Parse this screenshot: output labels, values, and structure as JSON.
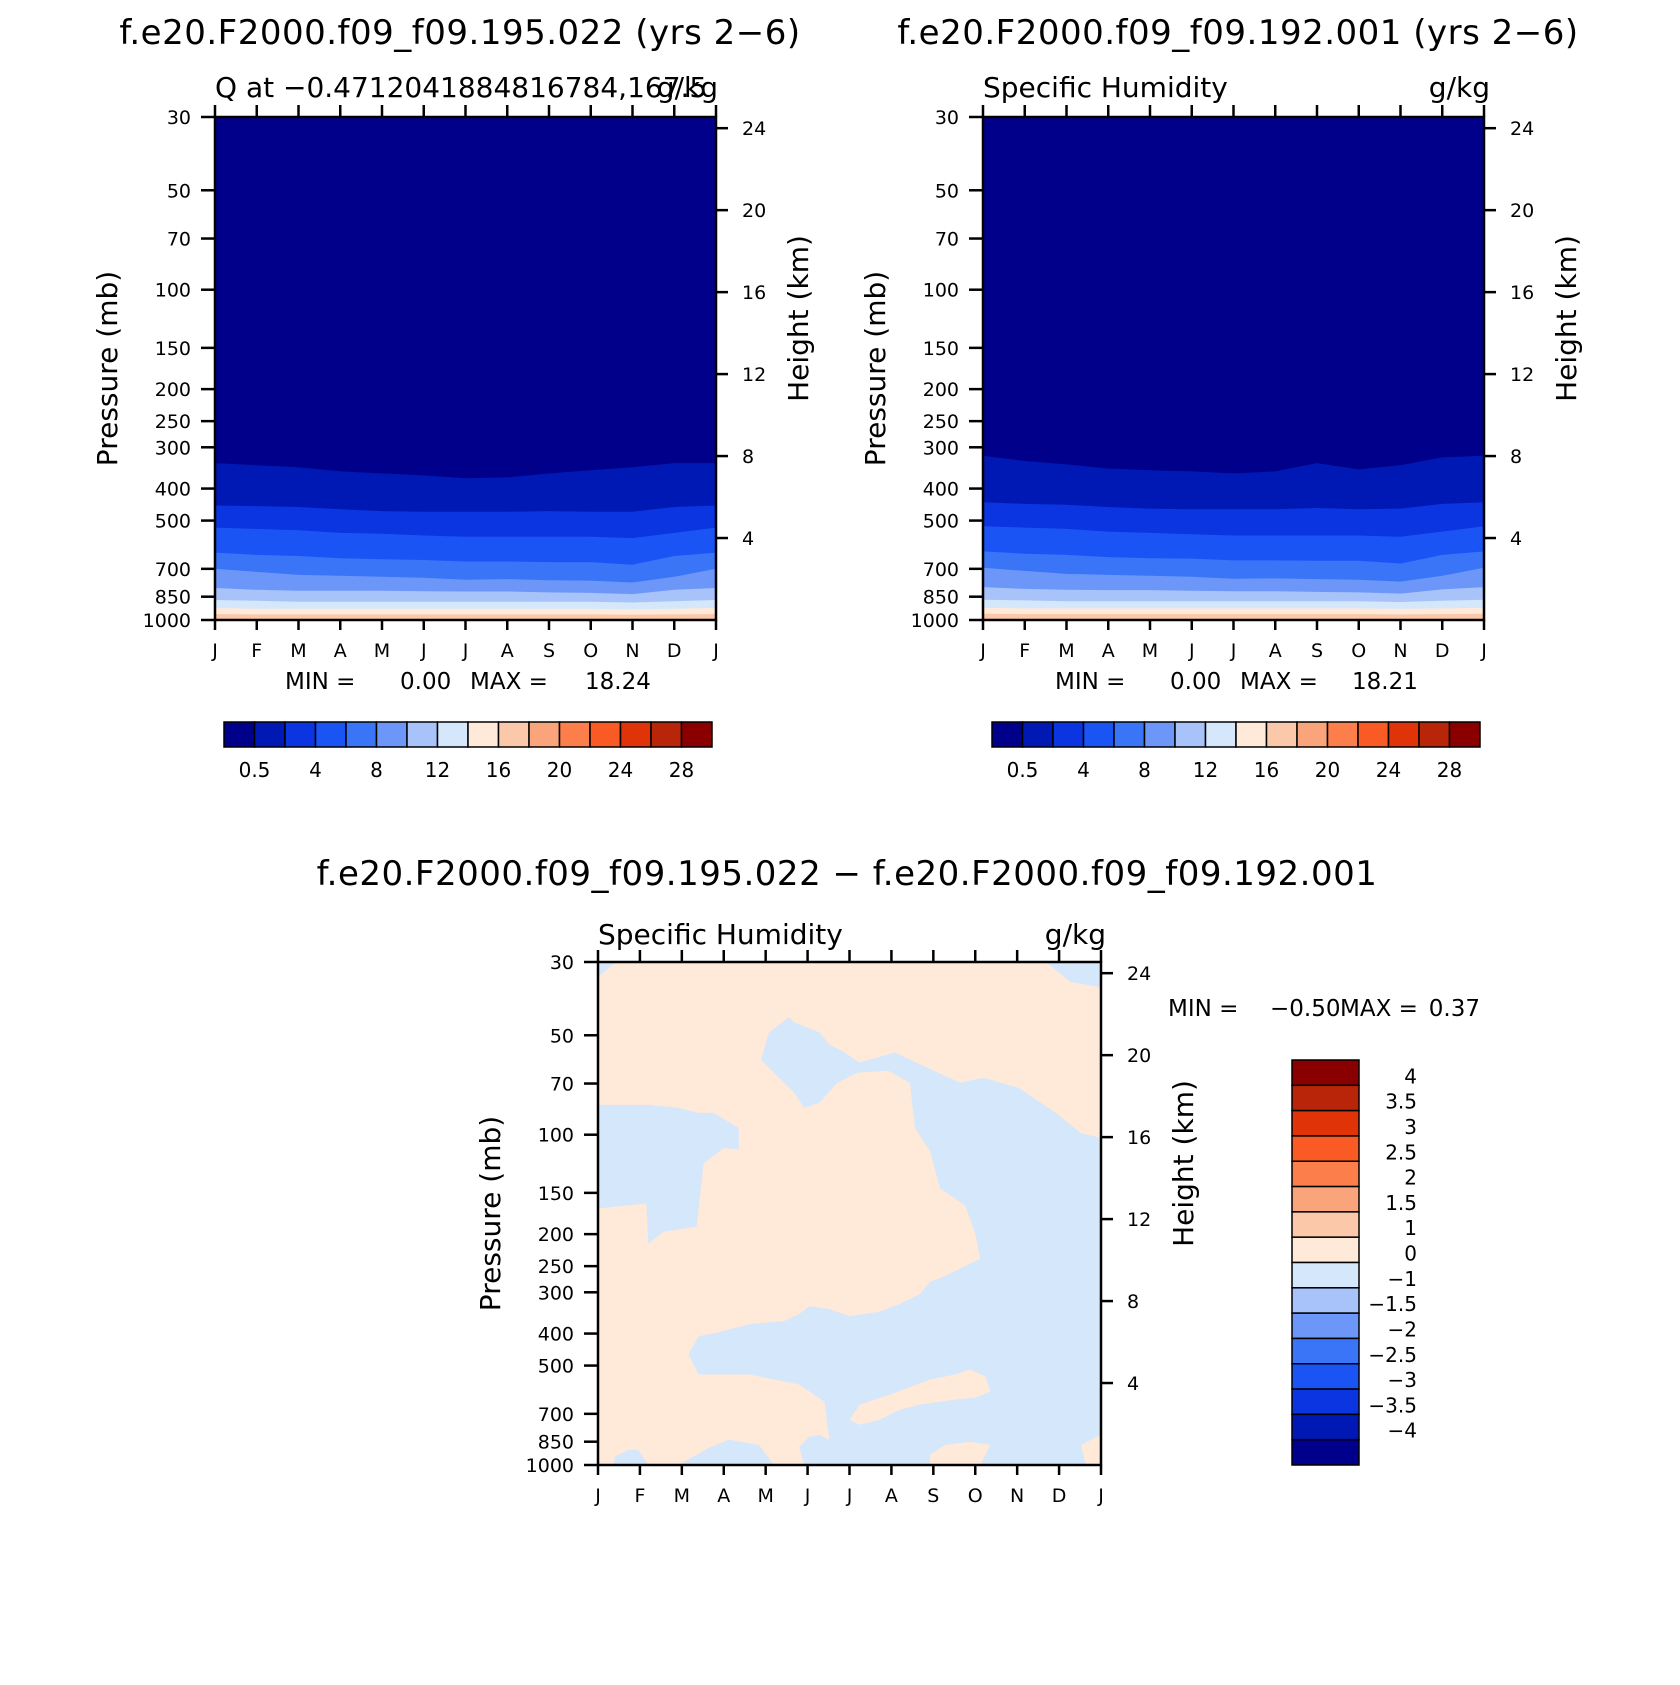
{
  "months": [
    "J",
    "F",
    "M",
    "A",
    "M",
    "J",
    "J",
    "A",
    "S",
    "O",
    "N",
    "D",
    "J"
  ],
  "pressure_ticks": [
    "30",
    "50",
    "70",
    "100",
    "150",
    "200",
    "250",
    "300",
    "400",
    "500",
    "700",
    "850",
    "1000"
  ],
  "height_ticks": [
    "24",
    "20",
    "16",
    "12",
    "8",
    "4"
  ],
  "left_axis_label": "Pressure (mb)",
  "right_axis_label": "Height (km)",
  "panels": [
    {
      "header": "f.e20.F2000.f09_f09.195.022 (yrs 2−6)",
      "left_title": "Q at −0.4712041884816784,167.5",
      "right_title": "g/kg",
      "min_label": "MIN =",
      "min_value": "0.00",
      "max_label": "MAX =",
      "max_value": "18.24"
    },
    {
      "header": "f.e20.F2000.f09_f09.192.001 (yrs 2−6)",
      "left_title": "Specific Humidity",
      "right_title": "g/kg",
      "min_label": "MIN =",
      "min_value": "0.00",
      "max_label": "MAX =",
      "max_value": "18.21"
    },
    {
      "header": "f.e20.F2000.f09_f09.195.022 − f.e20.F2000.f09_f09.192.001",
      "left_title": "Specific Humidity",
      "right_title": "g/kg",
      "min_label": "MIN =",
      "min_value": "−0.50",
      "max_label": "MAX =",
      "max_value": "0.37"
    }
  ],
  "colorbar_abs": {
    "labels": [
      "0.5",
      "4",
      "8",
      "12",
      "16",
      "20",
      "24",
      "28"
    ],
    "colors": [
      "#00008a",
      "#0019b4",
      "#0a35e0",
      "#1b54f5",
      "#3a74f7",
      "#6c97f8",
      "#a8c3fa",
      "#d5e7fb",
      "#ffe9d9",
      "#fcc8aa",
      "#f9a47a",
      "#fb7e4b",
      "#fa5a23",
      "#e03307",
      "#b82508",
      "#8a0000"
    ]
  },
  "colorbar_diff": {
    "labels": [
      "4",
      "3.5",
      "3",
      "2.5",
      "2",
      "1.5",
      "1",
      "0",
      "−1",
      "−1.5",
      "−2",
      "−2.5",
      "−3",
      "−3.5",
      "−4"
    ],
    "colors": [
      "#8a0000",
      "#b82508",
      "#e03307",
      "#fa5a23",
      "#fb7e4b",
      "#f9a47a",
      "#fcc8aa",
      "#ffe9d9",
      "#d5e7fb",
      "#a8c3fa",
      "#6c97f8",
      "#3a74f7",
      "#1b54f5",
      "#0a35e0",
      "#0019b4",
      "#00008a"
    ]
  },
  "chart_data": [
    {
      "type": "heatmap",
      "title": "Q at −0.4712041884816784,167.5",
      "units": "g/kg",
      "xlabel": "",
      "ylabel": "Pressure (mb)",
      "ylabel_right": "Height (km)",
      "x": [
        "J",
        "F",
        "M",
        "A",
        "M",
        "J",
        "J",
        "A",
        "S",
        "O",
        "N",
        "D",
        "J"
      ],
      "ylim": [
        1000,
        30
      ],
      "y_scale": "log",
      "min": 0.0,
      "max": 18.24,
      "levels": [
        0.5,
        2,
        4,
        6,
        8,
        10,
        12,
        14,
        16,
        18,
        20,
        22,
        24,
        26,
        28
      ],
      "contour_boundaries_mb": [
        {
          "level": 0.5,
          "p": [
            335,
            340,
            345,
            355,
            360,
            365,
            372,
            370,
            360,
            352,
            345,
            335,
            335
          ]
        },
        {
          "level": 2,
          "p": [
            450,
            452,
            455,
            462,
            468,
            470,
            470,
            470,
            468,
            470,
            470,
            455,
            450
          ]
        },
        {
          "level": 4,
          "p": [
            525,
            530,
            535,
            545,
            548,
            555,
            560,
            560,
            560,
            560,
            565,
            545,
            525
          ]
        },
        {
          "level": 6,
          "p": [
            625,
            635,
            640,
            650,
            655,
            658,
            665,
            665,
            668,
            668,
            680,
            640,
            625
          ]
        },
        {
          "level": 8,
          "p": [
            700,
            715,
            730,
            735,
            740,
            745,
            755,
            752,
            758,
            760,
            770,
            740,
            700
          ]
        },
        {
          "level": 10,
          "p": [
            800,
            810,
            815,
            815,
            815,
            818,
            820,
            820,
            825,
            828,
            835,
            810,
            800
          ]
        },
        {
          "level": 12,
          "p": [
            870,
            875,
            880,
            880,
            880,
            880,
            880,
            880,
            880,
            880,
            885,
            878,
            870
          ]
        },
        {
          "level": 14,
          "p": [
            920,
            925,
            925,
            925,
            925,
            925,
            925,
            925,
            925,
            925,
            928,
            925,
            920
          ]
        },
        {
          "level": 16,
          "p": [
            960,
            962,
            962,
            962,
            962,
            962,
            962,
            962,
            962,
            962,
            964,
            962,
            960
          ]
        }
      ]
    },
    {
      "type": "heatmap",
      "title": "Specific Humidity",
      "units": "g/kg",
      "xlabel": "",
      "ylabel": "Pressure (mb)",
      "ylabel_right": "Height (km)",
      "x": [
        "J",
        "F",
        "M",
        "A",
        "M",
        "J",
        "J",
        "A",
        "S",
        "O",
        "N",
        "D",
        "J"
      ],
      "ylim": [
        1000,
        30
      ],
      "y_scale": "log",
      "min": 0.0,
      "max": 18.21,
      "levels": [
        0.5,
        2,
        4,
        6,
        8,
        10,
        12,
        14,
        16,
        18,
        20,
        22,
        24,
        26,
        28
      ],
      "contour_boundaries_mb": [
        {
          "level": 0.5,
          "p": [
            318,
            330,
            338,
            348,
            352,
            355,
            360,
            355,
            335,
            350,
            340,
            322,
            318
          ]
        },
        {
          "level": 2,
          "p": [
            440,
            445,
            448,
            455,
            460,
            462,
            462,
            462,
            458,
            462,
            460,
            445,
            440
          ]
        },
        {
          "level": 4,
          "p": [
            520,
            525,
            530,
            540,
            545,
            550,
            555,
            555,
            555,
            555,
            560,
            540,
            520
          ]
        },
        {
          "level": 6,
          "p": [
            620,
            630,
            635,
            645,
            650,
            652,
            660,
            660,
            662,
            662,
            675,
            635,
            620
          ]
        },
        {
          "level": 8,
          "p": [
            695,
            710,
            725,
            730,
            735,
            740,
            750,
            748,
            752,
            755,
            765,
            735,
            695
          ]
        },
        {
          "level": 10,
          "p": [
            795,
            805,
            810,
            812,
            812,
            815,
            818,
            818,
            822,
            825,
            832,
            808,
            795
          ]
        },
        {
          "level": 12,
          "p": [
            868,
            872,
            878,
            878,
            878,
            878,
            878,
            878,
            878,
            878,
            882,
            875,
            868
          ]
        },
        {
          "level": 14,
          "p": [
            918,
            922,
            922,
            922,
            922,
            922,
            922,
            922,
            922,
            922,
            925,
            922,
            918
          ]
        },
        {
          "level": 16,
          "p": [
            958,
            960,
            960,
            960,
            960,
            960,
            960,
            960,
            960,
            960,
            962,
            960,
            958
          ]
        }
      ]
    },
    {
      "type": "heatmap",
      "title": "Specific Humidity",
      "units": "g/kg",
      "xlabel": "",
      "ylabel": "Pressure (mb)",
      "ylabel_right": "Height (km)",
      "x": [
        "J",
        "F",
        "M",
        "A",
        "M",
        "J",
        "J",
        "A",
        "S",
        "O",
        "N",
        "D",
        "J"
      ],
      "ylim": [
        1000,
        30
      ],
      "y_scale": "log",
      "min": -0.5,
      "max": 0.37,
      "levels": [
        -4,
        -3.5,
        -3,
        -2.5,
        -2,
        -1.5,
        -1,
        0,
        1,
        1.5,
        2,
        2.5,
        3,
        3.5,
        4
      ],
      "fill_regions": [
        "0 to 1",
        "−1 to 0"
      ]
    }
  ]
}
